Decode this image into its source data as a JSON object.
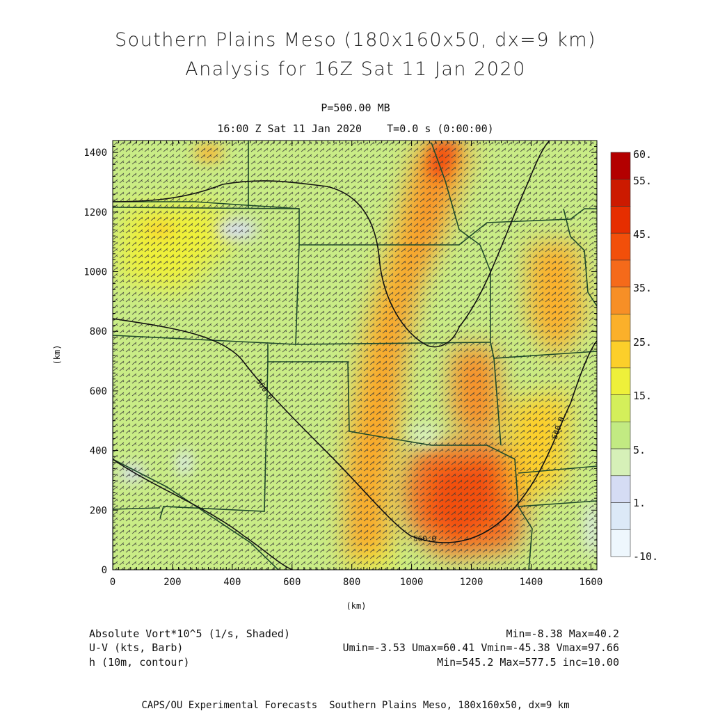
{
  "title": "Southern Plains Meso (180x160x50, dx=9 km)",
  "subtitle": "Analysis for 16Z Sat 11 Jan 2020",
  "level": "P=500.00 MB",
  "valid_time": "16:00 Z Sat 11 Jan 2020    T=0.0 s (0:00:00)",
  "footer": {
    "field1": "Absolute Vort*10^5 (1/s, Shaded)",
    "field1_range": "Min=-8.38 Max=40.2",
    "field2": "U-V (kts, Barb)",
    "field2_range": "Umin=-3.53 Umax=60.41 Vmin=-45.38 Vmax=97.66",
    "field3": "h (10m, contour)",
    "field3_range": "Min=545.2 Max=577.5 inc=10.00",
    "credit": "CAPS/OU Experimental Forecasts  Southern Plains Meso, 180x160x50, dx=9 km"
  },
  "colorbar": {
    "labels": [
      "60.",
      "55.",
      "45.",
      "35.",
      "25.",
      "15.",
      "5.",
      "1.",
      "-10."
    ],
    "colors": [
      "#b30000",
      "#cc1a00",
      "#e62e00",
      "#f24f0a",
      "#f56a1a",
      "#f78f26",
      "#fbb02a",
      "#fccf2a",
      "#eef03a",
      "#d4ef5a",
      "#c2ea82",
      "#d6f0b8",
      "#d5dcf4",
      "#dce9f7",
      "#eef7fd"
    ]
  },
  "chart_data": {
    "type": "heatmap",
    "title": "Southern Plains Meso (180x160x50, dx=9 km)",
    "xlabel": "(km)",
    "ylabel": "(km)",
    "xlim": [
      0,
      1620
    ],
    "ylim": [
      0,
      1440
    ],
    "xticks": [
      0,
      200,
      400,
      600,
      800,
      1000,
      1200,
      1400,
      1600
    ],
    "yticks": [
      0,
      200,
      400,
      600,
      800,
      1000,
      1200,
      1400
    ],
    "field_range": [
      -8.38,
      40.2
    ],
    "contour_labels": [
      "560.0",
      "560.0",
      "560.0"
    ],
    "contour_min": 545.2,
    "contour_max": 577.5,
    "contour_inc": 10.0
  }
}
